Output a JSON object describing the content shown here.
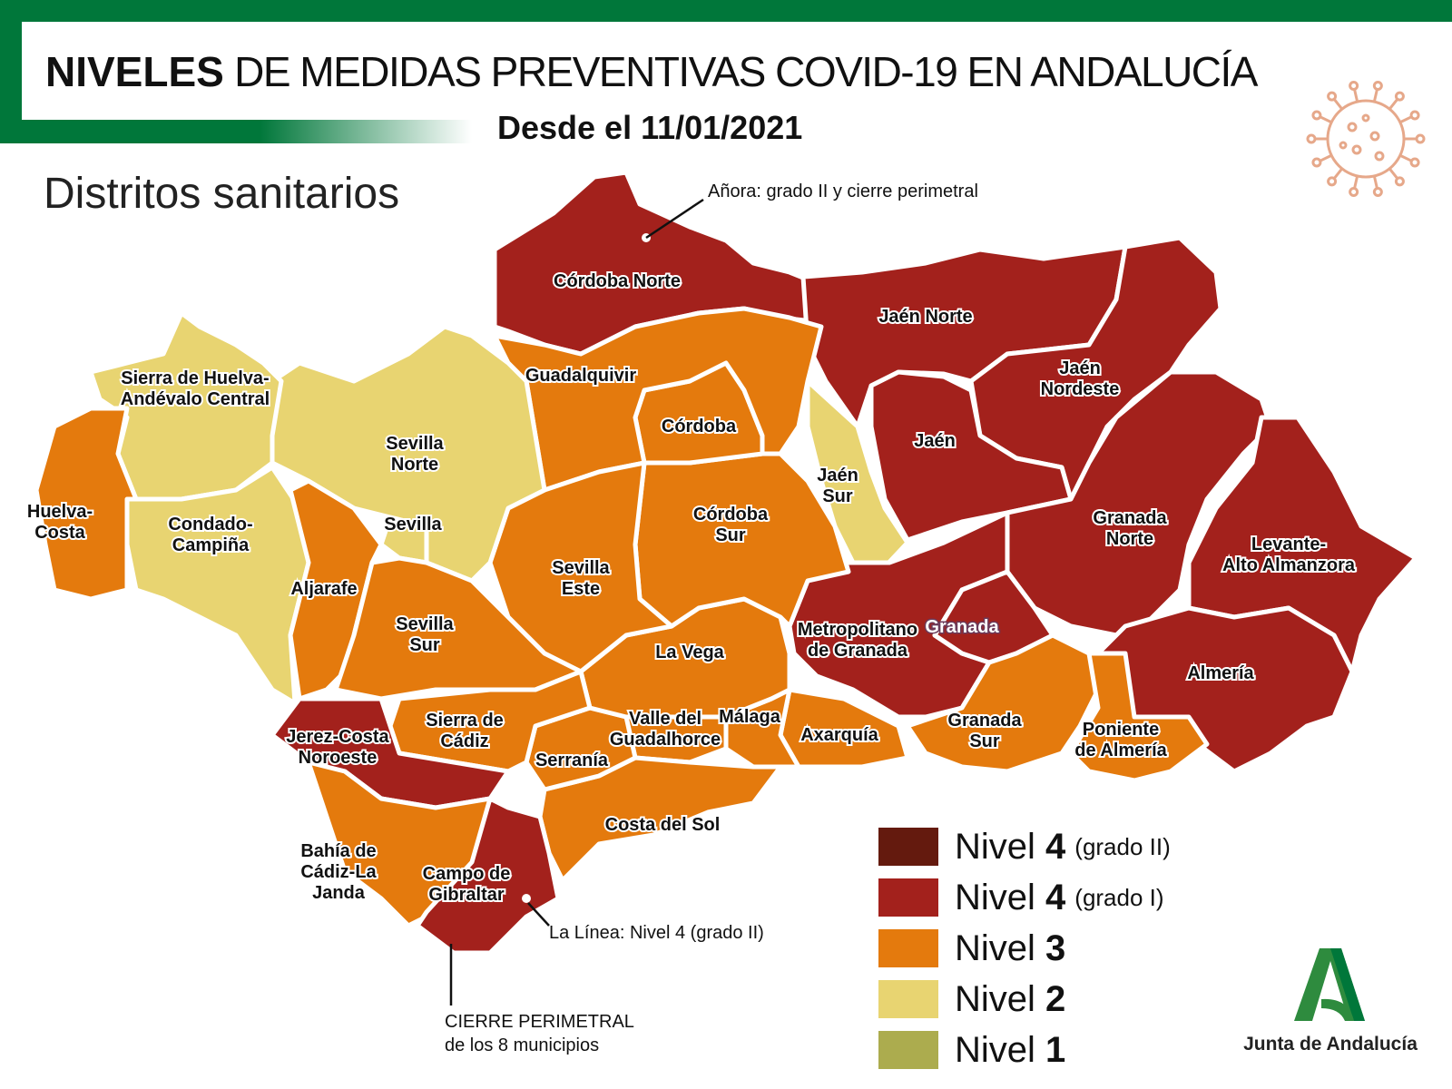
{
  "header": {
    "title_bold": "NIVELES",
    "title_rest": "DE MEDIDAS PREVENTIVAS COVID-19 EN ANDALUCÍA",
    "subtitle": "Desde el 11/01/2021",
    "map_title": "Distritos sanitarios",
    "decoration_icon": "virus-icon"
  },
  "colors": {
    "nivel4_grado2": "#641a0e",
    "nivel4_grado1": "#a3211c",
    "nivel3": "#e47a0d",
    "nivel2": "#e8d471",
    "nivel1": "#acac4e",
    "brand_green": "#00773a"
  },
  "districts": [
    {
      "name": "Córdoba Norte",
      "level": "nivel4_grado1"
    },
    {
      "name": "Jaén Norte",
      "level": "nivel4_grado1"
    },
    {
      "name": "Jaén Nordeste",
      "level": "nivel4_grado1"
    },
    {
      "name": "Jaén",
      "level": "nivel4_grado1"
    },
    {
      "name": "Jaén Sur",
      "level": "nivel2"
    },
    {
      "name": "Granada Norte",
      "level": "nivel4_grado1"
    },
    {
      "name": "Levante-Alto Almanzora",
      "level": "nivel4_grado1"
    },
    {
      "name": "Almería",
      "level": "nivel4_grado1"
    },
    {
      "name": "Metropolitano de Granada",
      "level": "nivel4_grado1"
    },
    {
      "name": "Granada",
      "level": "nivel4_grado1"
    },
    {
      "name": "Granada Sur",
      "level": "nivel3"
    },
    {
      "name": "Poniente de Almería",
      "level": "nivel3"
    },
    {
      "name": "Axarquía",
      "level": "nivel3"
    },
    {
      "name": "Málaga",
      "level": "nivel3"
    },
    {
      "name": "Valle del Guadalhorce",
      "level": "nivel3"
    },
    {
      "name": "Costa del Sol",
      "level": "nivel3"
    },
    {
      "name": "Serranía",
      "level": "nivel3"
    },
    {
      "name": "La Vega",
      "level": "nivel3"
    },
    {
      "name": "Córdoba Sur",
      "level": "nivel3"
    },
    {
      "name": "Córdoba",
      "level": "nivel3"
    },
    {
      "name": "Guadalquivir",
      "level": "nivel3"
    },
    {
      "name": "Sevilla Este",
      "level": "nivel3"
    },
    {
      "name": "Sevilla Norte",
      "level": "nivel2"
    },
    {
      "name": "Sevilla",
      "level": "nivel2"
    },
    {
      "name": "Sierra de Huelva-Andévalo Central",
      "level": "nivel2"
    },
    {
      "name": "Huelva-Costa",
      "level": "nivel3"
    },
    {
      "name": "Condado-Campiña",
      "level": "nivel2"
    },
    {
      "name": "Aljarafe",
      "level": "nivel3"
    },
    {
      "name": "Sevilla Sur",
      "level": "nivel3"
    },
    {
      "name": "Sierra de Cádiz",
      "level": "nivel3"
    },
    {
      "name": "Jerez-Costa Noroeste",
      "level": "nivel4_grado1"
    },
    {
      "name": "Bahía de Cádiz-La Janda",
      "level": "nivel3"
    },
    {
      "name": "Campo de Gibraltar",
      "level": "nivel4_grado1"
    }
  ],
  "labels": {
    "cordoba_norte": "Córdoba Norte",
    "jaen_norte": "Jaén Norte",
    "jaen_nordeste_1": "Jaén",
    "jaen_nordeste_2": "Nordeste",
    "jaen": "Jaén",
    "jaen_sur_1": "Jaén",
    "jaen_sur_2": "Sur",
    "granada_norte_1": "Granada",
    "granada_norte_2": "Norte",
    "levante_1": "Levante-",
    "levante_2": "Alto Almanzora",
    "almeria": "Almería",
    "metro_1": "Metropolitano",
    "metro_2": "de Granada",
    "granada": "Granada",
    "granada_sur_1": "Granada",
    "granada_sur_2": "Sur",
    "poniente_1": "Poniente",
    "poniente_2": "de Almería",
    "axarquia": "Axarquía",
    "malaga": "Málaga",
    "guadalhorce_1": "Valle del",
    "guadalhorce_2": "Guadalhorce",
    "costa_sol": "Costa del Sol",
    "serrania": "Serranía",
    "la_vega": "La Vega",
    "cordoba_sur_1": "Córdoba",
    "cordoba_sur_2": "Sur",
    "cordoba": "Córdoba",
    "guadalquivir": "Guadalquivir",
    "sevilla_este_1": "Sevilla",
    "sevilla_este_2": "Este",
    "sevilla_norte_1": "Sevilla",
    "sevilla_norte_2": "Norte",
    "sevilla": "Sevilla",
    "sierra_huelva_1": "Sierra de Huelva-",
    "sierra_huelva_2": "Andévalo Central",
    "huelva_costa_1": "Huelva-",
    "huelva_costa_2": "Costa",
    "condado_1": "Condado-",
    "condado_2": "Campiña",
    "aljarafe": "Aljarafe",
    "sevilla_sur_1": "Sevilla",
    "sevilla_sur_2": "Sur",
    "sierra_cadiz_1": "Sierra de",
    "sierra_cadiz_2": "Cádiz",
    "jerez_1": "Jerez-Costa",
    "jerez_2": "Noroeste",
    "bahia_1": "Bahía de",
    "bahia_2": "Cádiz-La",
    "bahia_3": "Janda",
    "campo_1": "Campo de",
    "campo_2": "Gibraltar"
  },
  "annotations": {
    "anora": "Añora: grado II y cierre perimetral",
    "la_linea": "La Línea: Nivel 4 (grado II)",
    "cierre_1": "CIERRE PERIMETRAL",
    "cierre_2": "de los 8 municipios"
  },
  "legend": [
    {
      "label": "Nivel",
      "number": "4",
      "note": "(grado II)",
      "color": "#641a0e"
    },
    {
      "label": "Nivel",
      "number": "4",
      "note": "(grado I)",
      "color": "#a3211c"
    },
    {
      "label": "Nivel",
      "number": "3",
      "note": "",
      "color": "#e47a0d"
    },
    {
      "label": "Nivel",
      "number": "2",
      "note": "",
      "color": "#e8d471"
    },
    {
      "label": "Nivel",
      "number": "1",
      "note": "",
      "color": "#acac4e"
    }
  ],
  "logo": {
    "text": "Junta de Andalucía"
  }
}
